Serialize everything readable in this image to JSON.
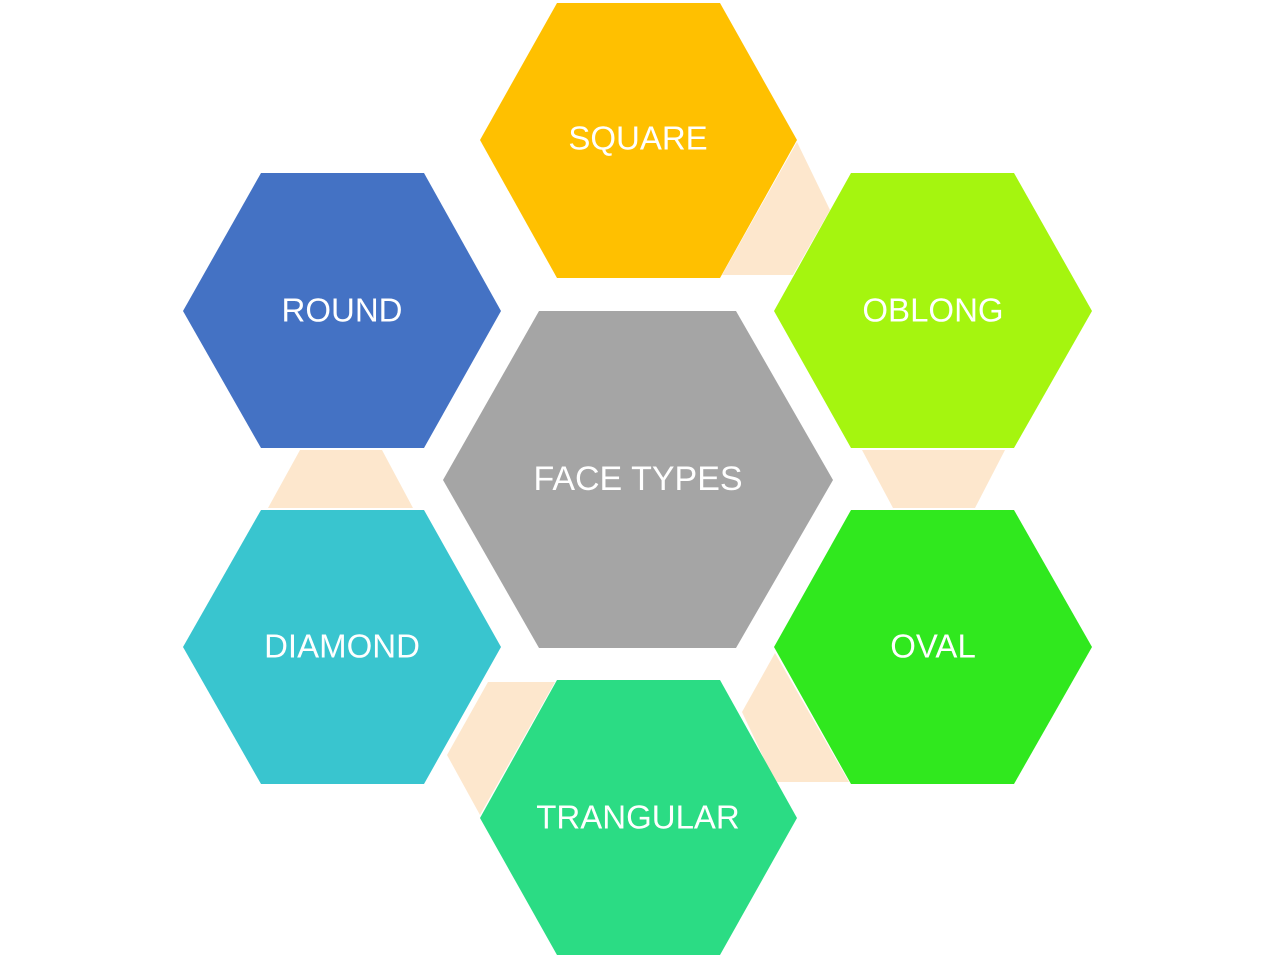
{
  "diagram": {
    "center": {
      "label": "FACE TYPES",
      "color": "#a5a5a5"
    },
    "connector_color": "#fde7cd",
    "nodes": {
      "square": {
        "label": "SQUARE",
        "color": "#ffc000"
      },
      "oblong": {
        "label": "OBLONG",
        "color": "#a5f50f"
      },
      "oval": {
        "label": "OVAL",
        "color": "#30e81e"
      },
      "triangular": {
        "label": "TRANGULAR",
        "color": "#2bdc84"
      },
      "diamond": {
        "label": "DIAMOND",
        "color": "#39c5cf"
      },
      "round": {
        "label": "ROUND",
        "color": "#4472c4"
      }
    }
  }
}
